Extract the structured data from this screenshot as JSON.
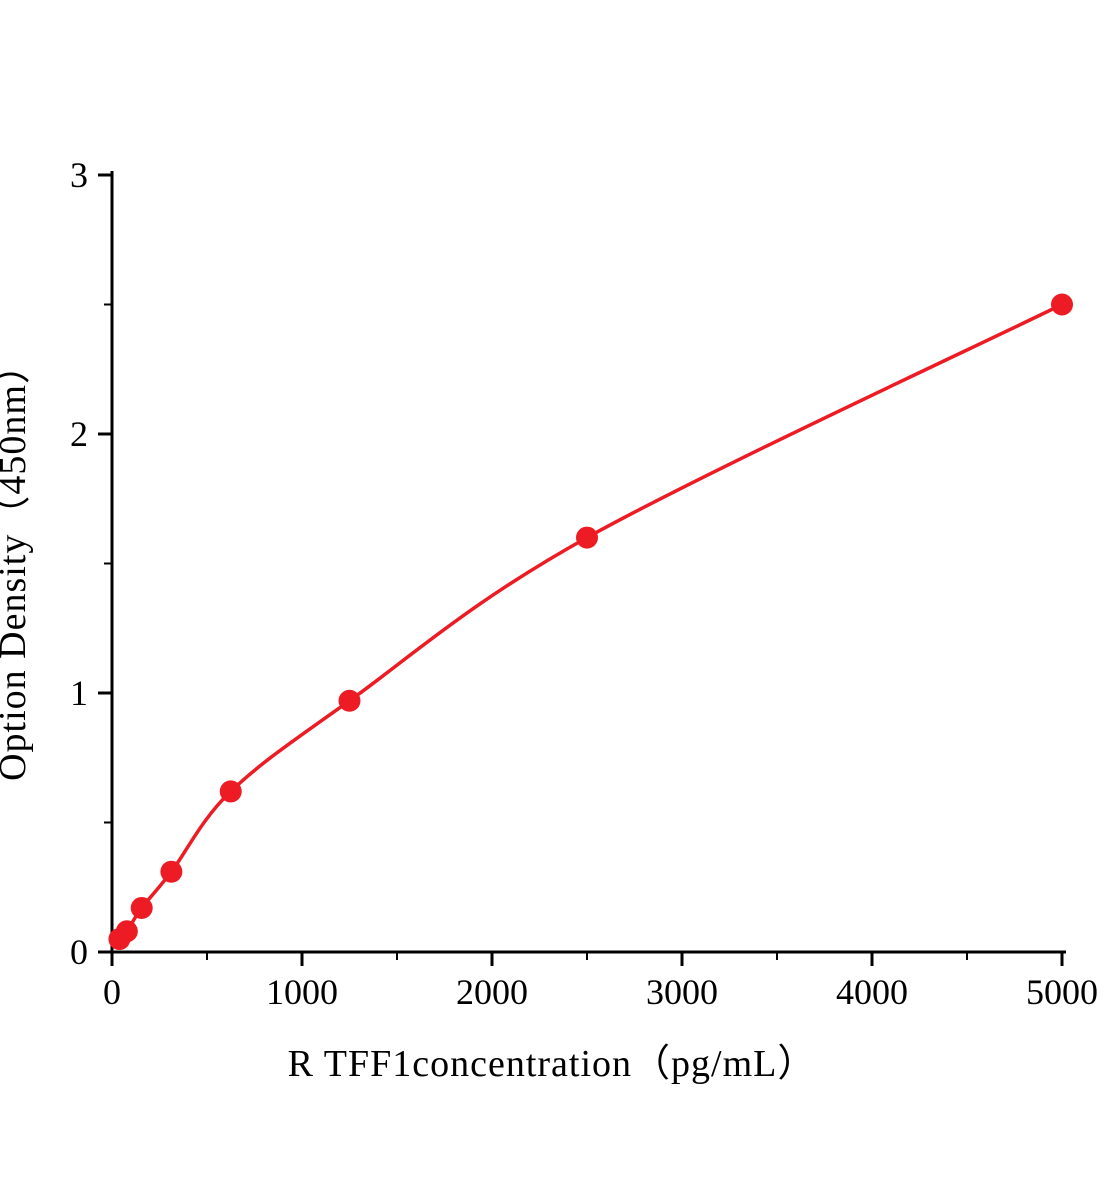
{
  "figure": {
    "background": "#ffffff",
    "axis_color": "#000000",
    "tick_label_color": "#000000"
  },
  "chart_data": {
    "type": "scatter",
    "title": "",
    "xlabel": "R TFF1concentration（pg/mL）",
    "ylabel": "Option Density（450nm）",
    "xlim": [
      0,
      5000
    ],
    "ylim": [
      0,
      3
    ],
    "x_ticks": [
      0,
      1000,
      2000,
      3000,
      4000,
      5000
    ],
    "y_ticks": [
      0,
      1,
      2,
      3
    ],
    "x_minor_step": 500,
    "y_minor_step": 0.5,
    "grid": "off",
    "legend": "none",
    "series": [
      {
        "name": "standard-curve",
        "color": "#ed1c24",
        "marker": "circle",
        "line": "smooth",
        "points": [
          {
            "x": 39.1,
            "y": 0.05
          },
          {
            "x": 78.1,
            "y": 0.08
          },
          {
            "x": 156.3,
            "y": 0.17
          },
          {
            "x": 312.5,
            "y": 0.31
          },
          {
            "x": 625,
            "y": 0.62
          },
          {
            "x": 1250,
            "y": 0.97
          },
          {
            "x": 2500,
            "y": 1.6
          },
          {
            "x": 5000,
            "y": 2.5
          }
        ]
      }
    ]
  }
}
